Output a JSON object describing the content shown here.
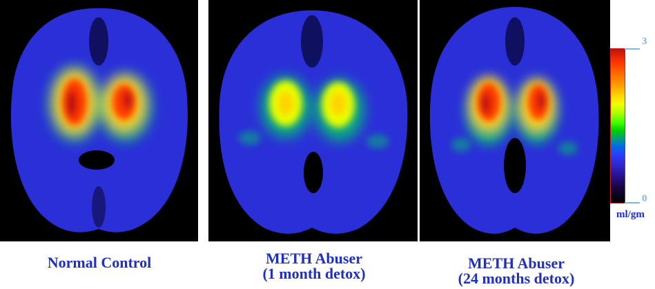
{
  "panels": [
    {
      "caption": [
        "Normal Control"
      ]
    },
    {
      "caption": [
        "METH Abuser",
        "(1 month detox)"
      ]
    },
    {
      "caption": [
        "METH Abuser",
        "(24 months detox)"
      ]
    }
  ],
  "color_scale": {
    "max_label": "3",
    "min_label": "0",
    "unit": "ml/gm",
    "gradient_colors": [
      "#b81410",
      "#ff3000",
      "#ffa000",
      "#f0ff00",
      "#3cff00",
      "#0070e0",
      "#3025c8",
      "#18063f",
      "#000000"
    ]
  },
  "colors": {
    "caption": "#1f2fbf",
    "scale_label": "#7fb6e8",
    "brain_base": "#2a2fd8",
    "background": "#000000"
  }
}
